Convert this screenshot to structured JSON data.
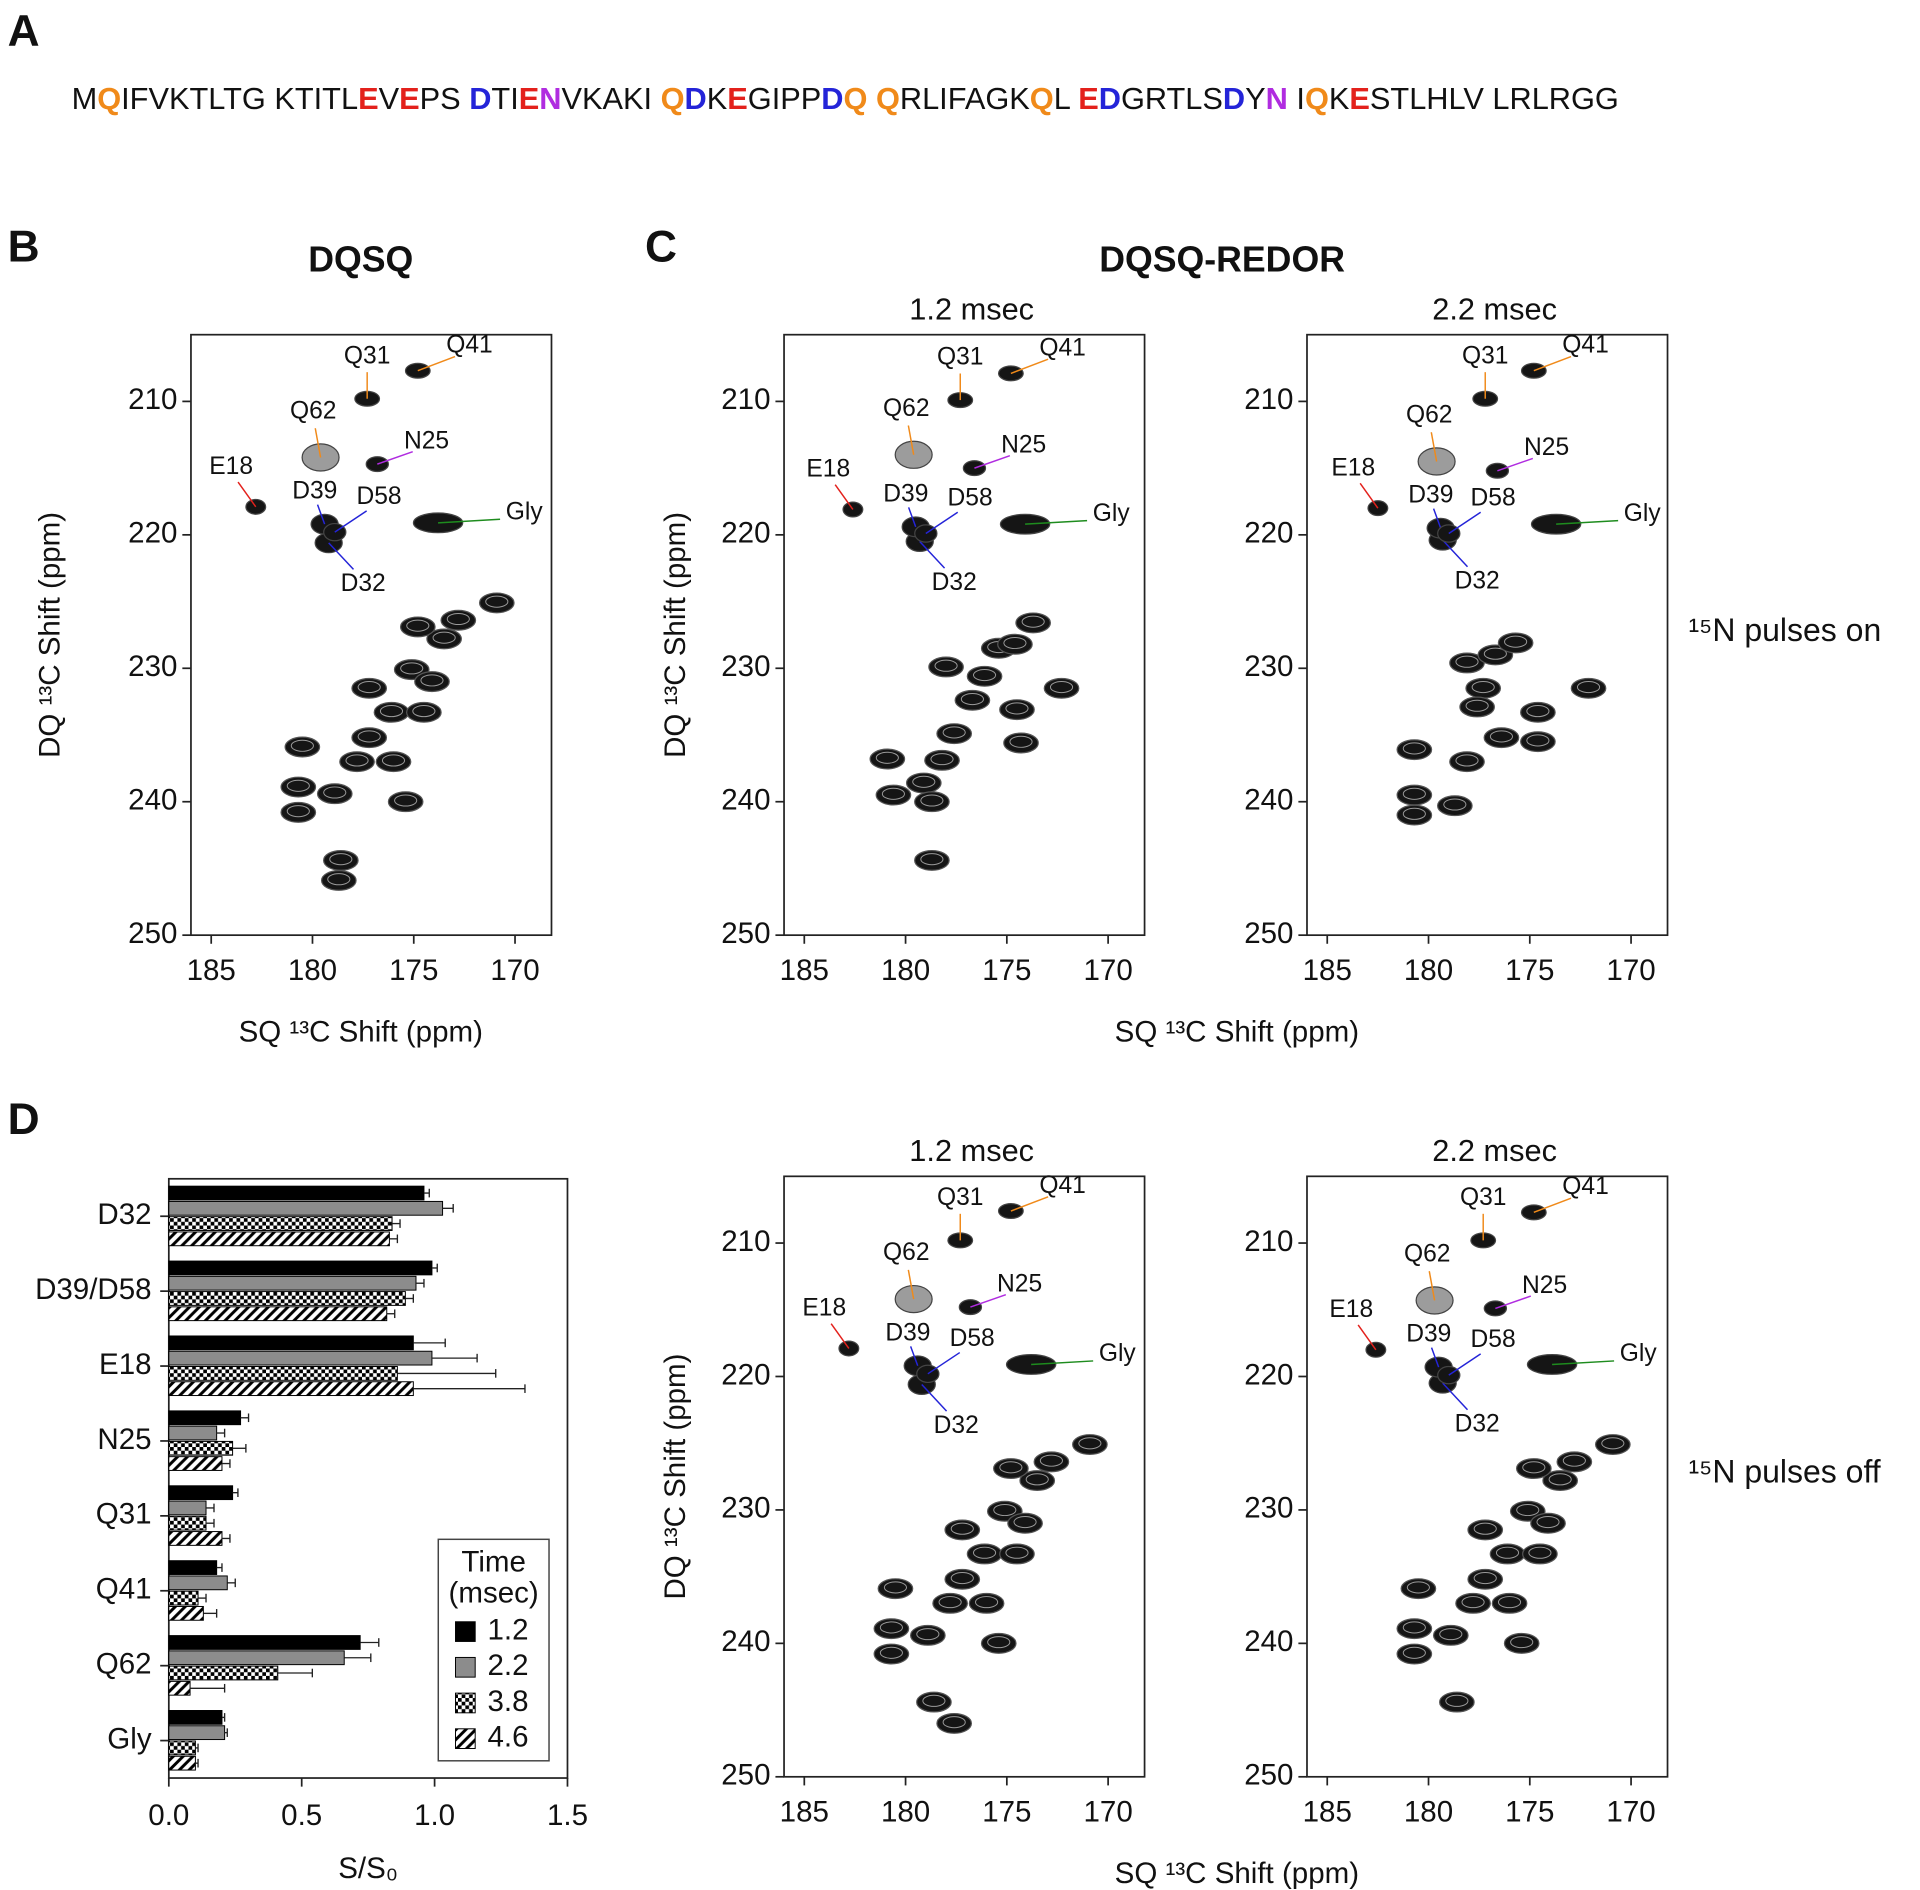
{
  "panel_A": {
    "letter": "A",
    "sequence": [
      {
        "text": "M"
      },
      {
        "text": "Q",
        "color": "#f08a1a"
      },
      {
        "text": "IFVKTLTG KTITL"
      },
      {
        "text": "E",
        "color": "#e3211c"
      },
      {
        "text": "V"
      },
      {
        "text": "E",
        "color": "#e3211c"
      },
      {
        "text": "PS "
      },
      {
        "text": "D",
        "color": "#2424d8"
      },
      {
        "text": "TI"
      },
      {
        "text": "E",
        "color": "#e3211c"
      },
      {
        "text": "N",
        "color": "#b02ce0"
      },
      {
        "text": "VKAKI "
      },
      {
        "text": "Q",
        "color": "#f08a1a"
      },
      {
        "text": "D",
        "color": "#2424d8"
      },
      {
        "text": "K"
      },
      {
        "text": "E",
        "color": "#e3211c"
      },
      {
        "text": "GIPP"
      },
      {
        "text": "D",
        "color": "#2424d8"
      },
      {
        "text": "Q",
        "color": "#f08a1a"
      },
      {
        "text": " "
      },
      {
        "text": "Q",
        "color": "#f08a1a"
      },
      {
        "text": "RLIFAGK"
      },
      {
        "text": "Q",
        "color": "#f08a1a"
      },
      {
        "text": "L "
      },
      {
        "text": "E",
        "color": "#e3211c"
      },
      {
        "text": "D",
        "color": "#2424d8"
      },
      {
        "text": "GRTLS"
      },
      {
        "text": "D",
        "color": "#2424d8"
      },
      {
        "text": "Y"
      },
      {
        "text": "N",
        "color": "#b02ce0"
      },
      {
        "text": " I"
      },
      {
        "text": "Q",
        "color": "#f08a1a"
      },
      {
        "text": "K"
      },
      {
        "text": "E",
        "color": "#e3211c"
      },
      {
        "text": "STLHLV LRLRGG"
      }
    ]
  },
  "spectrum_axes": {
    "xlim": [
      186,
      168.2
    ],
    "ylim": [
      205,
      250
    ],
    "xticks": [
      185,
      180,
      175,
      170
    ],
    "yticks": [
      210,
      220,
      230,
      240,
      250
    ]
  },
  "panel_B": {
    "letter": "B",
    "title": "DQSQ",
    "xlabel": "SQ ¹³C Shift (ppm)",
    "ylabel": "DQ ¹³C Shift (ppm)",
    "spectrum": {
      "peaks": [
        {
          "label": "E18",
          "color": "#e3211c",
          "x": 182.8,
          "y": 217.9
        },
        {
          "label": "N25",
          "color": "#b02ce0",
          "x": 176.8,
          "y": 214.7
        },
        {
          "label": "D32",
          "color": "#2424d8",
          "x": 179.2,
          "y": 220.6
        },
        {
          "label": "D39",
          "color": "#2424d8",
          "x": 179.4,
          "y": 219.2
        },
        {
          "label": "D58",
          "color": "#2424d8",
          "x": 178.9,
          "y": 219.8
        },
        {
          "label": "Q31",
          "color": "#f08a1a",
          "x": 177.3,
          "y": 209.8
        },
        {
          "label": "Q41",
          "color": "#f08a1a",
          "x": 174.8,
          "y": 207.7
        },
        {
          "label": "Q62",
          "color": "#f08a1a",
          "x": 179.6,
          "y": 214.2
        },
        {
          "label": "Gly",
          "color": "#1e8c1e",
          "x": 173.8,
          "y": 219.1
        }
      ],
      "crosspeaks": [
        [
          180.5,
          235.9
        ],
        [
          180.7,
          238.9
        ],
        [
          180.7,
          240.8
        ],
        [
          178.9,
          239.4
        ],
        [
          178.6,
          244.4
        ],
        [
          178.7,
          245.9
        ],
        [
          175.4,
          240.0
        ],
        [
          177.2,
          235.2
        ],
        [
          176.1,
          233.3
        ],
        [
          174.5,
          233.3
        ],
        [
          177.2,
          231.5
        ],
        [
          175.1,
          230.1
        ],
        [
          173.5,
          227.8
        ],
        [
          174.8,
          226.9
        ],
        [
          172.8,
          226.4
        ],
        [
          170.9,
          225.1
        ],
        [
          176.0,
          237.0
        ],
        [
          177.8,
          237.0
        ],
        [
          174.1,
          231.0
        ]
      ]
    }
  },
  "panel_C": {
    "letter": "C",
    "title": "DQSQ-REDOR",
    "rows": [
      {
        "condition": "¹⁵N pulses on",
        "xlabel": "SQ ¹³C Shift (ppm)",
        "ylabel": "DQ ¹³C Shift (ppm)",
        "spectra": [
          {
            "title": "1.2 msec",
            "peaks": [
              {
                "label": "E18",
                "color": "#e3211c",
                "x": 182.6,
                "y": 218.1
              },
              {
                "label": "N25",
                "color": "#b02ce0",
                "x": 176.6,
                "y": 215.0
              },
              {
                "label": "D32",
                "color": "#2424d8",
                "x": 179.3,
                "y": 220.5
              },
              {
                "label": "D39",
                "color": "#2424d8",
                "x": 179.5,
                "y": 219.4
              },
              {
                "label": "D58",
                "color": "#2424d8",
                "x": 179.0,
                "y": 219.9
              },
              {
                "label": "Q31",
                "color": "#f08a1a",
                "x": 177.3,
                "y": 209.9
              },
              {
                "label": "Q41",
                "color": "#f08a1a",
                "x": 174.8,
                "y": 207.9
              },
              {
                "label": "Q62",
                "color": "#f08a1a",
                "x": 179.6,
                "y": 214.0
              },
              {
                "label": "Gly",
                "color": "#1e8c1e",
                "x": 174.1,
                "y": 219.2
              }
            ],
            "crosspeaks": [
              [
                180.9,
                236.8
              ],
              [
                180.6,
                239.5
              ],
              [
                179.1,
                238.6
              ],
              [
                178.7,
                240.0
              ],
              [
                178.7,
                244.4
              ],
              [
                178.2,
                236.9
              ],
              [
                177.6,
                234.9
              ],
              [
                178.0,
                229.9
              ],
              [
                176.7,
                232.4
              ],
              [
                176.1,
                230.6
              ],
              [
                175.4,
                228.5
              ],
              [
                174.6,
                228.2
              ],
              [
                173.7,
                226.6
              ],
              [
                174.5,
                233.1
              ],
              [
                174.3,
                235.6
              ],
              [
                172.3,
                231.5
              ]
            ]
          },
          {
            "title": "2.2 msec",
            "peaks": [
              {
                "label": "E18",
                "color": "#e3211c",
                "x": 182.5,
                "y": 218.0
              },
              {
                "label": "N25",
                "color": "#b02ce0",
                "x": 176.6,
                "y": 215.2
              },
              {
                "label": "D32",
                "color": "#2424d8",
                "x": 179.3,
                "y": 220.4
              },
              {
                "label": "D39",
                "color": "#2424d8",
                "x": 179.4,
                "y": 219.5
              },
              {
                "label": "D58",
                "color": "#2424d8",
                "x": 179.0,
                "y": 219.9
              },
              {
                "label": "Q31",
                "color": "#f08a1a",
                "x": 177.2,
                "y": 209.8
              },
              {
                "label": "Q41",
                "color": "#f08a1a",
                "x": 174.8,
                "y": 207.7
              },
              {
                "label": "Q62",
                "color": "#f08a1a",
                "x": 179.6,
                "y": 214.5
              },
              {
                "label": "Gly",
                "color": "#1e8c1e",
                "x": 173.7,
                "y": 219.2
              }
            ],
            "crosspeaks": [
              [
                180.7,
                236.1
              ],
              [
                180.7,
                239.5
              ],
              [
                180.7,
                241.0
              ],
              [
                178.7,
                240.3
              ],
              [
                178.1,
                229.6
              ],
              [
                177.3,
                231.5
              ],
              [
                176.7,
                229.0
              ],
              [
                175.7,
                228.1
              ],
              [
                177.6,
                232.9
              ],
              [
                174.6,
                233.3
              ],
              [
                174.6,
                235.5
              ],
              [
                176.4,
                235.2
              ],
              [
                178.1,
                237.0
              ],
              [
                172.1,
                231.5
              ]
            ]
          }
        ]
      },
      {
        "condition": "¹⁵N pulses off",
        "xlabel": "SQ ¹³C Shift (ppm)",
        "ylabel": "DQ ¹³C Shift (ppm)",
        "spectra": [
          {
            "title": "1.2 msec",
            "peaks": [
              {
                "label": "E18",
                "color": "#e3211c",
                "x": 182.8,
                "y": 217.9
              },
              {
                "label": "N25",
                "color": "#b02ce0",
                "x": 176.8,
                "y": 214.8
              },
              {
                "label": "D32",
                "color": "#2424d8",
                "x": 179.2,
                "y": 220.6
              },
              {
                "label": "D39",
                "color": "#2424d8",
                "x": 179.4,
                "y": 219.2
              },
              {
                "label": "D58",
                "color": "#2424d8",
                "x": 178.9,
                "y": 219.8
              },
              {
                "label": "Q31",
                "color": "#f08a1a",
                "x": 177.3,
                "y": 209.8
              },
              {
                "label": "Q41",
                "color": "#f08a1a",
                "x": 174.8,
                "y": 207.6
              },
              {
                "label": "Q62",
                "color": "#f08a1a",
                "x": 179.6,
                "y": 214.2
              },
              {
                "label": "Gly",
                "color": "#1e8c1e",
                "x": 173.8,
                "y": 219.1
              }
            ],
            "crosspeaks": [
              [
                180.5,
                235.9
              ],
              [
                180.7,
                238.9
              ],
              [
                180.7,
                240.8
              ],
              [
                178.9,
                239.4
              ],
              [
                178.6,
                244.4
              ],
              [
                177.6,
                246.0
              ],
              [
                175.4,
                240.0
              ],
              [
                177.2,
                235.2
              ],
              [
                176.1,
                233.3
              ],
              [
                174.5,
                233.3
              ],
              [
                177.2,
                231.5
              ],
              [
                175.1,
                230.1
              ],
              [
                173.5,
                227.8
              ],
              [
                174.8,
                226.9
              ],
              [
                172.8,
                226.4
              ],
              [
                170.9,
                225.1
              ],
              [
                176.0,
                237.0
              ],
              [
                177.8,
                237.0
              ],
              [
                174.1,
                231.0
              ]
            ]
          },
          {
            "title": "2.2 msec",
            "peaks": [
              {
                "label": "E18",
                "color": "#e3211c",
                "x": 182.6,
                "y": 218.0
              },
              {
                "label": "N25",
                "color": "#b02ce0",
                "x": 176.7,
                "y": 214.9
              },
              {
                "label": "D32",
                "color": "#2424d8",
                "x": 179.3,
                "y": 220.5
              },
              {
                "label": "D39",
                "color": "#2424d8",
                "x": 179.5,
                "y": 219.3
              },
              {
                "label": "D58",
                "color": "#2424d8",
                "x": 179.0,
                "y": 219.9
              },
              {
                "label": "Q31",
                "color": "#f08a1a",
                "x": 177.3,
                "y": 209.8
              },
              {
                "label": "Q41",
                "color": "#f08a1a",
                "x": 174.8,
                "y": 207.7
              },
              {
                "label": "Q62",
                "color": "#f08a1a",
                "x": 179.7,
                "y": 214.3
              },
              {
                "label": "Gly",
                "color": "#1e8c1e",
                "x": 173.9,
                "y": 219.1
              }
            ],
            "crosspeaks": [
              [
                180.5,
                235.9
              ],
              [
                180.7,
                238.9
              ],
              [
                180.7,
                240.8
              ],
              [
                178.9,
                239.4
              ],
              [
                178.6,
                244.4
              ],
              [
                175.4,
                240.0
              ],
              [
                177.2,
                235.2
              ],
              [
                176.1,
                233.3
              ],
              [
                174.5,
                233.3
              ],
              [
                177.2,
                231.5
              ],
              [
                175.1,
                230.1
              ],
              [
                173.5,
                227.8
              ],
              [
                174.8,
                226.9
              ],
              [
                172.8,
                226.4
              ],
              [
                170.9,
                225.1
              ],
              [
                176.0,
                237.0
              ],
              [
                177.8,
                237.0
              ],
              [
                174.1,
                231.0
              ]
            ]
          }
        ]
      }
    ]
  },
  "panel_D": {
    "letter": "D"
  },
  "chart_data": {
    "type": "bar",
    "orientation": "horizontal",
    "categories": [
      "D32",
      "D39/D58",
      "E18",
      "N25",
      "Q31",
      "Q41",
      "Q62",
      "Gly"
    ],
    "series": [
      {
        "name": "1.2",
        "color": "#000000",
        "pattern": "solid",
        "values": [
          0.96,
          0.99,
          0.92,
          0.27,
          0.24,
          0.18,
          0.72,
          0.2
        ],
        "errors": [
          0.02,
          0.02,
          0.12,
          0.03,
          0.02,
          0.02,
          0.07,
          0.01
        ]
      },
      {
        "name": "2.2",
        "color": "#8c8c8c",
        "pattern": "solid",
        "values": [
          1.03,
          0.93,
          0.99,
          0.18,
          0.14,
          0.22,
          0.66,
          0.21
        ],
        "errors": [
          0.04,
          0.03,
          0.17,
          0.03,
          0.03,
          0.03,
          0.1,
          0.01
        ]
      },
      {
        "name": "3.8",
        "color": "#000000",
        "pattern": "checker",
        "values": [
          0.84,
          0.89,
          0.86,
          0.24,
          0.14,
          0.11,
          0.41,
          0.1
        ],
        "errors": [
          0.03,
          0.03,
          0.37,
          0.05,
          0.03,
          0.03,
          0.13,
          0.01
        ]
      },
      {
        "name": "4.6",
        "color": "#000000",
        "pattern": "hatch",
        "values": [
          0.83,
          0.82,
          0.92,
          0.2,
          0.2,
          0.13,
          0.08,
          0.1
        ],
        "errors": [
          0.03,
          0.03,
          0.42,
          0.03,
          0.03,
          0.05,
          0.13,
          0.01
        ]
      }
    ],
    "xlim": [
      0,
      1.5
    ],
    "xticks": [
      {
        "value": 0,
        "label": "0.0"
      },
      0.5,
      {
        "value": 1,
        "label": "1.0"
      },
      1.5
    ],
    "xlabel": "S/S₀",
    "legend_title": [
      "Time",
      "(msec)"
    ],
    "legend_position": "lower right"
  }
}
